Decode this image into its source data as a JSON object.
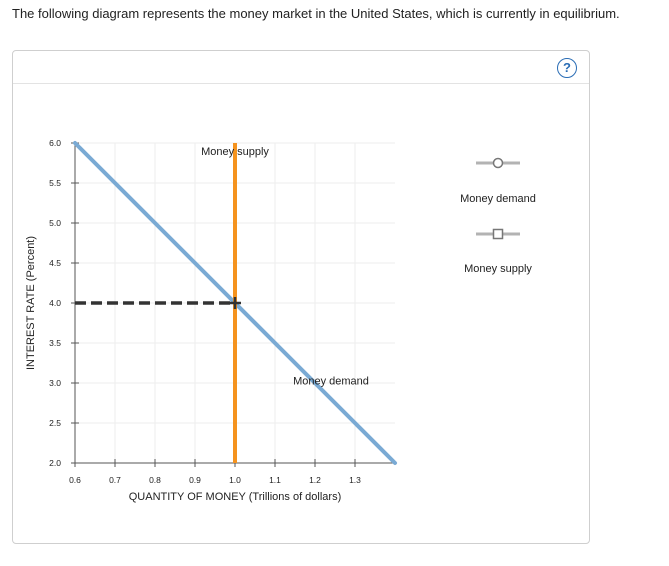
{
  "prompt": "The following diagram represents the money market in the United States, which is currently in equilibrium.",
  "help_icon": "question-mark-icon",
  "colors": {
    "demand": "#7aaad4",
    "supply": "#f5931e",
    "equilibrium_marker": "#333333",
    "grid": "#eeeeee",
    "legend_gray": "#b3b3b3"
  },
  "chart_data": {
    "type": "line",
    "xlabel": "QUANTITY OF MONEY (Trillions of dollars)",
    "ylabel": "INTEREST RATE (Percent)",
    "xlim": [
      0.6,
      1.4
    ],
    "ylim": [
      2.0,
      6.0
    ],
    "x_ticks": [
      0.6,
      0.7,
      0.8,
      0.9,
      1.0,
      1.1,
      1.2,
      1.3
    ],
    "x_tick_labels": [
      "0.6",
      "0.7",
      "0.8",
      "0.9",
      "1.0",
      "1.1",
      "1.2",
      "1.3"
    ],
    "y_ticks": [
      2.0,
      2.5,
      3.0,
      3.5,
      4.0,
      4.5,
      5.0,
      5.5,
      6.0
    ],
    "y_tick_labels": [
      "2.0",
      "2.5",
      "3.0",
      "3.5",
      "4.0",
      "4.5",
      "5.0",
      "5.5",
      "6.0"
    ],
    "grid": true,
    "series": [
      {
        "name": "Money demand",
        "x": [
          0.6,
          1.4
        ],
        "y": [
          6.0,
          2.0
        ]
      },
      {
        "name": "Money supply",
        "x": [
          1.0,
          1.0
        ],
        "y": [
          2.0,
          6.0
        ]
      }
    ],
    "equilibrium": {
      "x": 1.0,
      "y": 4.0
    },
    "annotations": [
      {
        "text": "Money supply",
        "x": 1.0,
        "y": 5.85
      },
      {
        "text": "Money demand",
        "x": 1.24,
        "y": 2.98
      }
    ]
  },
  "legend": [
    {
      "label": "Money demand",
      "icon": "circle-marker-icon"
    },
    {
      "label": "Money supply",
      "icon": "square-marker-icon"
    }
  ]
}
